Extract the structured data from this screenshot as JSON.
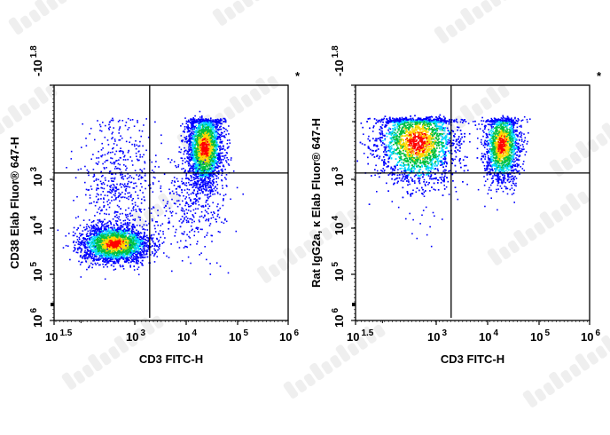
{
  "watermark": "Elabscience®",
  "colors": {
    "density": [
      "#0000ff",
      "#00d8ff",
      "#00c040",
      "#ffd800",
      "#ff0000"
    ],
    "gate": "#000000"
  },
  "chart_data": [
    {
      "type": "scatter",
      "subtype": "flow-cytometry density dot plot",
      "xlabel": "CD3 FITC-H",
      "ylabel": "CD38 Elab Fluor® 647-H",
      "corner_mark": "*",
      "x_scale": "biexponential",
      "y_scale": "biexponential",
      "x_ticks": [
        {
          "base": "10",
          "exp": "1.5",
          "log": 1.5
        },
        {
          "base": "10",
          "exp": "3",
          "log": 3
        },
        {
          "base": "10",
          "exp": "4",
          "log": 4
        },
        {
          "base": "10",
          "exp": "5",
          "log": 5
        },
        {
          "base": "10",
          "exp": "6",
          "log": 6
        }
      ],
      "y_ticks": [
        {
          "base": "-10",
          "exp": "1.8",
          "log": -1.8
        },
        {
          "base": "10",
          "exp": "3",
          "log": 3
        },
        {
          "base": "10",
          "exp": "4",
          "log": 4
        },
        {
          "base": "10",
          "exp": "5",
          "log": 5
        },
        {
          "base": "10",
          "exp": "6",
          "log": 6
        }
      ],
      "gates_log10": {
        "x": 3.29,
        "y": 2.89
      },
      "populations_log10": [
        {
          "cx": 2.62,
          "cy": 4.33,
          "sx": 0.32,
          "sy": 0.2,
          "n": 2600
        },
        {
          "cx": 2.7,
          "cy": 3.0,
          "sx": 0.35,
          "sy": 0.55,
          "n": 500
        },
        {
          "cx": 4.35,
          "cy": 2.45,
          "sx": 0.17,
          "sy": 0.33,
          "n": 2400
        },
        {
          "cx": 4.1,
          "cy": 3.5,
          "sx": 0.35,
          "sy": 0.5,
          "n": 350
        }
      ]
    },
    {
      "type": "scatter",
      "subtype": "flow-cytometry density dot plot",
      "xlabel": "CD3 FITC-H",
      "ylabel": "Rat IgG2a, κ  Elab Fluor® 647-H",
      "corner_mark": "*",
      "x_scale": "biexponential",
      "y_scale": "biexponential",
      "x_ticks": [
        {
          "base": "10",
          "exp": "1.5",
          "log": 1.5
        },
        {
          "base": "10",
          "exp": "3",
          "log": 3
        },
        {
          "base": "10",
          "exp": "4",
          "log": 4
        },
        {
          "base": "10",
          "exp": "5",
          "log": 5
        },
        {
          "base": "10",
          "exp": "6",
          "log": 6
        }
      ],
      "y_ticks": [
        {
          "base": "-10",
          "exp": "1.8",
          "log": -1.8
        },
        {
          "base": "10",
          "exp": "3",
          "log": 3
        },
        {
          "base": "10",
          "exp": "4",
          "log": 4
        },
        {
          "base": "10",
          "exp": "5",
          "log": 5
        },
        {
          "base": "10",
          "exp": "6",
          "log": 6
        }
      ],
      "gates_log10": {
        "x": 3.29,
        "y": 2.89
      },
      "populations_log10": [
        {
          "cx": 2.64,
          "cy": 2.35,
          "sx": 0.38,
          "sy": 0.36,
          "n": 3600
        },
        {
          "cx": 4.27,
          "cy": 2.4,
          "sx": 0.17,
          "sy": 0.32,
          "n": 1700
        },
        {
          "cx": 2.8,
          "cy": 3.7,
          "sx": 0.25,
          "sy": 0.4,
          "n": 18
        }
      ]
    }
  ]
}
